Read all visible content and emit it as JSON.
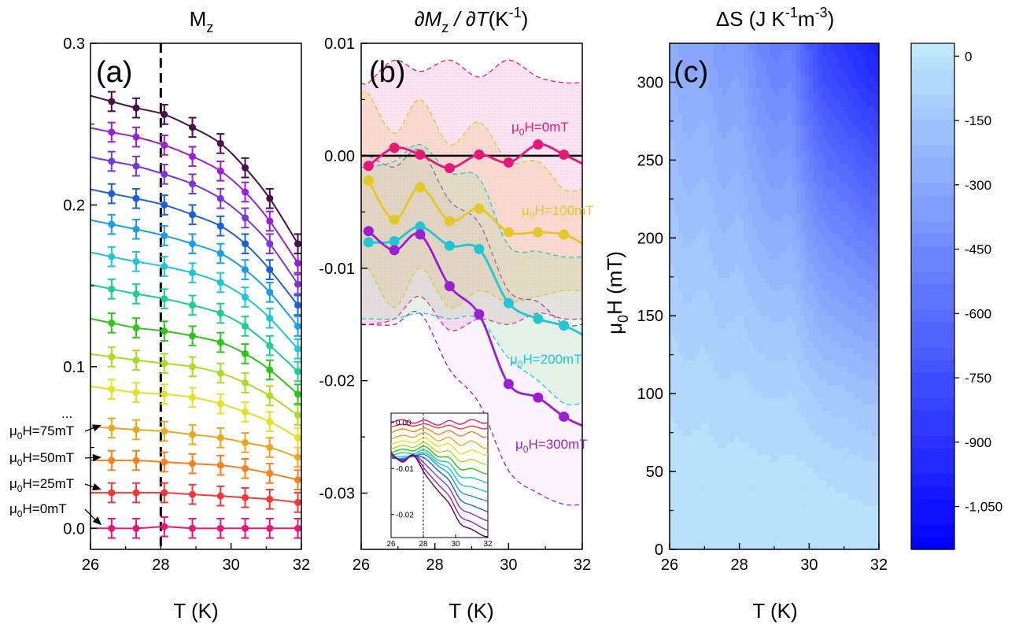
{
  "chart_data": [
    {
      "panel": "(a)",
      "type": "line",
      "title": "M",
      "title_sub": "z",
      "xlabel": "T (K)",
      "ylabel": "",
      "xlim": [
        26,
        32
      ],
      "ylim": [
        -0.013,
        0.3
      ],
      "xticks": [
        "26",
        "28",
        "30",
        "32"
      ],
      "yticks": [
        "0.0",
        "0.1",
        "0.2",
        "0.3"
      ],
      "vline_x": 28,
      "x": [
        26.6,
        27.3,
        28.1,
        28.9,
        29.7,
        30.4,
        31.1,
        31.9
      ],
      "errorbar": 0.006,
      "ellipsis": "...",
      "field_labels": [
        {
          "mu": "μ",
          "sub": "0",
          "rest": "H=75mT"
        },
        {
          "mu": "μ",
          "sub": "0",
          "rest": "H=50mT"
        },
        {
          "mu": "μ",
          "sub": "0",
          "rest": "H=25mT"
        },
        {
          "mu": "μ",
          "sub": "0",
          "rest": "H=0mT"
        }
      ],
      "series": [
        {
          "color": "#e6177b",
          "values": [
            0.0,
            0.0,
            0.001,
            0.0,
            0.0,
            0.0,
            0.0,
            0.0
          ]
        },
        {
          "color": "#f03a3a",
          "values": [
            0.022,
            0.022,
            0.022,
            0.021,
            0.02,
            0.019,
            0.018,
            0.016
          ]
        },
        {
          "color": "#f58120",
          "values": [
            0.042,
            0.042,
            0.041,
            0.04,
            0.039,
            0.037,
            0.034,
            0.03
          ]
        },
        {
          "color": "#e8a823",
          "values": [
            0.062,
            0.061,
            0.06,
            0.058,
            0.056,
            0.053,
            0.05,
            0.044
          ]
        },
        {
          "color": "#e3e02a",
          "values": [
            0.086,
            0.084,
            0.083,
            0.081,
            0.077,
            0.072,
            0.066,
            0.056
          ]
        },
        {
          "color": "#a9dc25",
          "values": [
            0.106,
            0.104,
            0.102,
            0.1,
            0.096,
            0.09,
            0.082,
            0.07
          ]
        },
        {
          "color": "#2fc41b",
          "values": [
            0.127,
            0.124,
            0.122,
            0.119,
            0.115,
            0.108,
            0.098,
            0.083
          ]
        },
        {
          "color": "#1ccf8a",
          "values": [
            0.148,
            0.145,
            0.142,
            0.138,
            0.133,
            0.125,
            0.113,
            0.097
          ]
        },
        {
          "color": "#22c5d3",
          "values": [
            0.168,
            0.165,
            0.162,
            0.158,
            0.152,
            0.143,
            0.13,
            0.111
          ]
        },
        {
          "color": "#1c9de6",
          "values": [
            0.188,
            0.185,
            0.181,
            0.176,
            0.17,
            0.16,
            0.146,
            0.125
          ]
        },
        {
          "color": "#1f5fd6",
          "values": [
            0.207,
            0.204,
            0.2,
            0.194,
            0.187,
            0.176,
            0.16,
            0.138
          ]
        },
        {
          "color": "#7a36d8",
          "values": [
            0.227,
            0.224,
            0.219,
            0.213,
            0.204,
            0.192,
            0.176,
            0.151
          ]
        },
        {
          "color": "#9b1fd0",
          "values": [
            0.245,
            0.242,
            0.237,
            0.23,
            0.221,
            0.208,
            0.19,
            0.164
          ]
        },
        {
          "color": "#4a0e4e",
          "values": [
            0.264,
            0.26,
            0.256,
            0.248,
            0.238,
            0.223,
            0.204,
            0.176
          ]
        }
      ]
    },
    {
      "panel": "(b)",
      "type": "line",
      "title_parts": [
        "∂M",
        "z",
        " / ∂",
        "T",
        "(K",
        "-1",
        ")"
      ],
      "xlabel": "T (K)",
      "ylabel": "",
      "xlim": [
        26,
        32
      ],
      "ylim": [
        -0.035,
        0.01
      ],
      "xticks": [
        "26",
        "28",
        "30",
        "32"
      ],
      "yticks": [
        "0.01",
        "0.00",
        "-0.01",
        "-0.02",
        "-0.03"
      ],
      "series": [
        {
          "name": "H=0mT",
          "color": "#e6177b",
          "x": [
            26.2,
            26.9,
            27.6,
            28.4,
            29.2,
            30.0,
            30.8,
            31.5
          ],
          "values": [
            -0.0009,
            0.0007,
            0.0001,
            -0.0011,
            0.0001,
            -0.0006,
            0.001,
            0.0001
          ],
          "band": {
            "upper": [
              0.0065,
              0.0085,
              0.0075,
              0.0085,
              0.007,
              0.0085,
              0.007,
              0.0065
            ],
            "lower": [
              -0.015,
              -0.0145,
              -0.0125,
              -0.0155,
              -0.0145,
              -0.015,
              -0.014,
              -0.0145
            ]
          }
        },
        {
          "name": "H=100mT",
          "color": "#e3c82a",
          "x": [
            26.2,
            26.9,
            27.6,
            28.4,
            29.2,
            30.0,
            30.8,
            31.5
          ],
          "values": [
            -0.0022,
            -0.0057,
            -0.0028,
            -0.0058,
            -0.0047,
            -0.0068,
            -0.0068,
            -0.007
          ],
          "band": {
            "upper": [
              0.0055,
              0.002,
              0.005,
              0.001,
              0.003,
              -0.0005,
              -0.0005,
              -0.003
            ],
            "lower": [
              -0.01,
              -0.0135,
              -0.01,
              -0.0135,
              -0.012,
              -0.013,
              -0.0125,
              -0.012
            ]
          }
        },
        {
          "name": "H=200mT",
          "color": "#22c5d3",
          "x": [
            26.2,
            26.9,
            27.6,
            28.4,
            29.2,
            30.0,
            30.8,
            31.5
          ],
          "values": [
            -0.0077,
            -0.0076,
            -0.0063,
            -0.008,
            -0.0083,
            -0.0131,
            -0.0145,
            -0.0151
          ],
          "band": {
            "upper": [
              -0.001,
              -0.0005,
              0.001,
              -0.0015,
              -0.002,
              -0.008,
              -0.0085,
              -0.009
            ],
            "lower": [
              -0.0145,
              -0.0145,
              -0.014,
              -0.0145,
              -0.0145,
              -0.018,
              -0.02,
              -0.022
            ]
          }
        },
        {
          "name": "H=300mT",
          "color": "#9b1fd0",
          "x": [
            26.2,
            26.9,
            27.6,
            28.4,
            29.2,
            30.0,
            30.8,
            31.5
          ],
          "values": [
            -0.0067,
            -0.0084,
            -0.007,
            -0.0116,
            -0.0141,
            -0.0203,
            -0.0215,
            -0.0232
          ],
          "band": {
            "upper": [
              0.0,
              -0.001,
              0.0005,
              -0.004,
              -0.006,
              -0.012,
              -0.013,
              -0.015
            ],
            "lower": [
              -0.015,
              -0.015,
              -0.014,
              -0.019,
              -0.022,
              -0.028,
              -0.03,
              -0.031
            ]
          }
        }
      ],
      "series_labels": [
        {
          "mu": "μ",
          "sub": "0",
          "rest": "H=0mT"
        },
        {
          "mu": "μ",
          "sub": "0",
          "rest": "H=100mT"
        },
        {
          "mu": "μ",
          "sub": "0",
          "rest": "H=200mT"
        },
        {
          "mu": "μ",
          "sub": "0",
          "rest": "H=300mT"
        }
      ],
      "inset": {
        "xlim": [
          26,
          32
        ],
        "ylim": [
          -0.025,
          0.002
        ],
        "xticks": [
          "26",
          "28",
          "30",
          "32"
        ],
        "yticks": [
          "0.00",
          "-0.01",
          "-0.02"
        ],
        "vline_x": 28,
        "x": [
          26.0,
          26.7,
          27.4,
          28.1,
          28.9,
          29.6,
          30.3,
          31.0,
          31.7,
          32.0
        ],
        "series": [
          {
            "color": "#e6177b",
            "values": [
              0.0,
              0.0006,
              -0.0002,
              0.0005,
              -0.0006,
              0.0004,
              -0.0004,
              0.0006,
              -0.0002,
              0.0
            ]
          },
          {
            "color": "#f03a3a",
            "values": [
              -0.001,
              -0.0004,
              -0.0008,
              -0.0003,
              -0.0012,
              -0.0006,
              -0.0014,
              -0.0008,
              -0.0014,
              -0.0012
            ]
          },
          {
            "color": "#f58120",
            "values": [
              -0.0022,
              -0.0014,
              -0.002,
              -0.0012,
              -0.0026,
              -0.0018,
              -0.003,
              -0.002,
              -0.0032,
              -0.003
            ]
          },
          {
            "color": "#e8a823",
            "values": [
              -0.0036,
              -0.0028,
              -0.0032,
              -0.0022,
              -0.004,
              -0.0032,
              -0.005,
              -0.004,
              -0.0055,
              -0.0055
            ]
          },
          {
            "color": "#e3e02a",
            "values": [
              -0.0048,
              -0.004,
              -0.0044,
              -0.0034,
              -0.0052,
              -0.0046,
              -0.0068,
              -0.006,
              -0.007,
              -0.007
            ]
          },
          {
            "color": "#a9dc25",
            "values": [
              -0.0058,
              -0.005,
              -0.0054,
              -0.0044,
              -0.0064,
              -0.0062,
              -0.0085,
              -0.008,
              -0.009,
              -0.009
            ]
          },
          {
            "color": "#2fc41b",
            "values": [
              -0.0066,
              -0.0058,
              -0.0062,
              -0.0052,
              -0.0074,
              -0.0076,
              -0.0102,
              -0.01,
              -0.011,
              -0.0112
            ]
          },
          {
            "color": "#1ccf8a",
            "values": [
              -0.0072,
              -0.0066,
              -0.0068,
              -0.006,
              -0.0082,
              -0.0088,
              -0.0118,
              -0.012,
              -0.0128,
              -0.0132
            ]
          },
          {
            "color": "#22c5d3",
            "values": [
              -0.0076,
              -0.0074,
              -0.0072,
              -0.0066,
              -0.0088,
              -0.01,
              -0.0134,
              -0.014,
              -0.0148,
              -0.0152
            ]
          },
          {
            "color": "#1c9de6",
            "values": [
              -0.0078,
              -0.0078,
              -0.0074,
              -0.007,
              -0.0094,
              -0.0112,
              -0.015,
              -0.016,
              -0.0168,
              -0.0172
            ]
          },
          {
            "color": "#1f5fd6",
            "values": [
              -0.0076,
              -0.008,
              -0.0072,
              -0.0078,
              -0.0104,
              -0.0126,
              -0.0168,
              -0.018,
              -0.019,
              -0.0194
            ]
          },
          {
            "color": "#7a36d8",
            "values": [
              -0.0072,
              -0.0082,
              -0.007,
              -0.009,
              -0.0118,
              -0.0142,
              -0.0186,
              -0.0198,
              -0.021,
              -0.0214
            ]
          },
          {
            "color": "#9b1fd0",
            "values": [
              -0.0068,
              -0.0084,
              -0.007,
              -0.0102,
              -0.0134,
              -0.016,
              -0.0204,
              -0.0216,
              -0.023,
              -0.0234
            ]
          },
          {
            "color": "#4a0e4e",
            "values": [
              -0.0066,
              -0.0086,
              -0.0072,
              -0.0112,
              -0.0148,
              -0.0176,
              -0.022,
              -0.0232,
              -0.0246,
              -0.0248
            ]
          }
        ]
      }
    },
    {
      "panel": "(c)",
      "type": "heatmap",
      "title_parts": [
        "ΔS (J K",
        "-1",
        "m",
        "-3",
        ")"
      ],
      "xlabel": "T (K)",
      "ylabel_parts": [
        "μ",
        "0",
        "H (mT)"
      ],
      "xlim": [
        26,
        32
      ],
      "ylim": [
        0,
        325
      ],
      "xticks": [
        "26",
        "28",
        "30",
        "32"
      ],
      "yticks": [
        "0",
        "50",
        "100",
        "150",
        "200",
        "250",
        "300"
      ],
      "x": [
        26,
        26.5,
        27,
        27.5,
        28,
        28.5,
        29,
        29.5,
        30,
        30.5,
        31,
        31.5,
        32
      ],
      "y": [
        0,
        50,
        100,
        150,
        200,
        250,
        300,
        325
      ],
      "z": [
        [
          0,
          0,
          0,
          0,
          0,
          0,
          0,
          0,
          0,
          0,
          0,
          0,
          0
        ],
        [
          -10,
          -15,
          -10,
          -20,
          -15,
          -20,
          -25,
          -20,
          -30,
          -40,
          -45,
          -55,
          -60
        ],
        [
          -40,
          -55,
          -45,
          -65,
          -55,
          -75,
          -80,
          -75,
          -110,
          -140,
          -150,
          -170,
          -180
        ],
        [
          -80,
          -110,
          -95,
          -130,
          -115,
          -150,
          -170,
          -160,
          -230,
          -280,
          -300,
          -330,
          -350
        ],
        [
          -130,
          -170,
          -150,
          -200,
          -180,
          -240,
          -270,
          -250,
          -360,
          -430,
          -460,
          -500,
          -530
        ],
        [
          -180,
          -230,
          -210,
          -270,
          -250,
          -320,
          -370,
          -350,
          -500,
          -590,
          -630,
          -680,
          -720
        ],
        [
          -230,
          -290,
          -270,
          -340,
          -320,
          -410,
          -470,
          -450,
          -640,
          -760,
          -810,
          -870,
          -920
        ],
        [
          -260,
          -320,
          -300,
          -380,
          -360,
          -460,
          -520,
          -500,
          -700,
          -830,
          -880,
          -940,
          -990
        ]
      ],
      "colorbar": {
        "range": [
          -1150,
          30
        ],
        "ticks": [
          "0",
          "-150",
          "-300",
          "-450",
          "-600",
          "-750",
          "-900",
          "-1,050"
        ],
        "colors": [
          "#bfe9fb",
          "#0000ff"
        ]
      }
    }
  ]
}
